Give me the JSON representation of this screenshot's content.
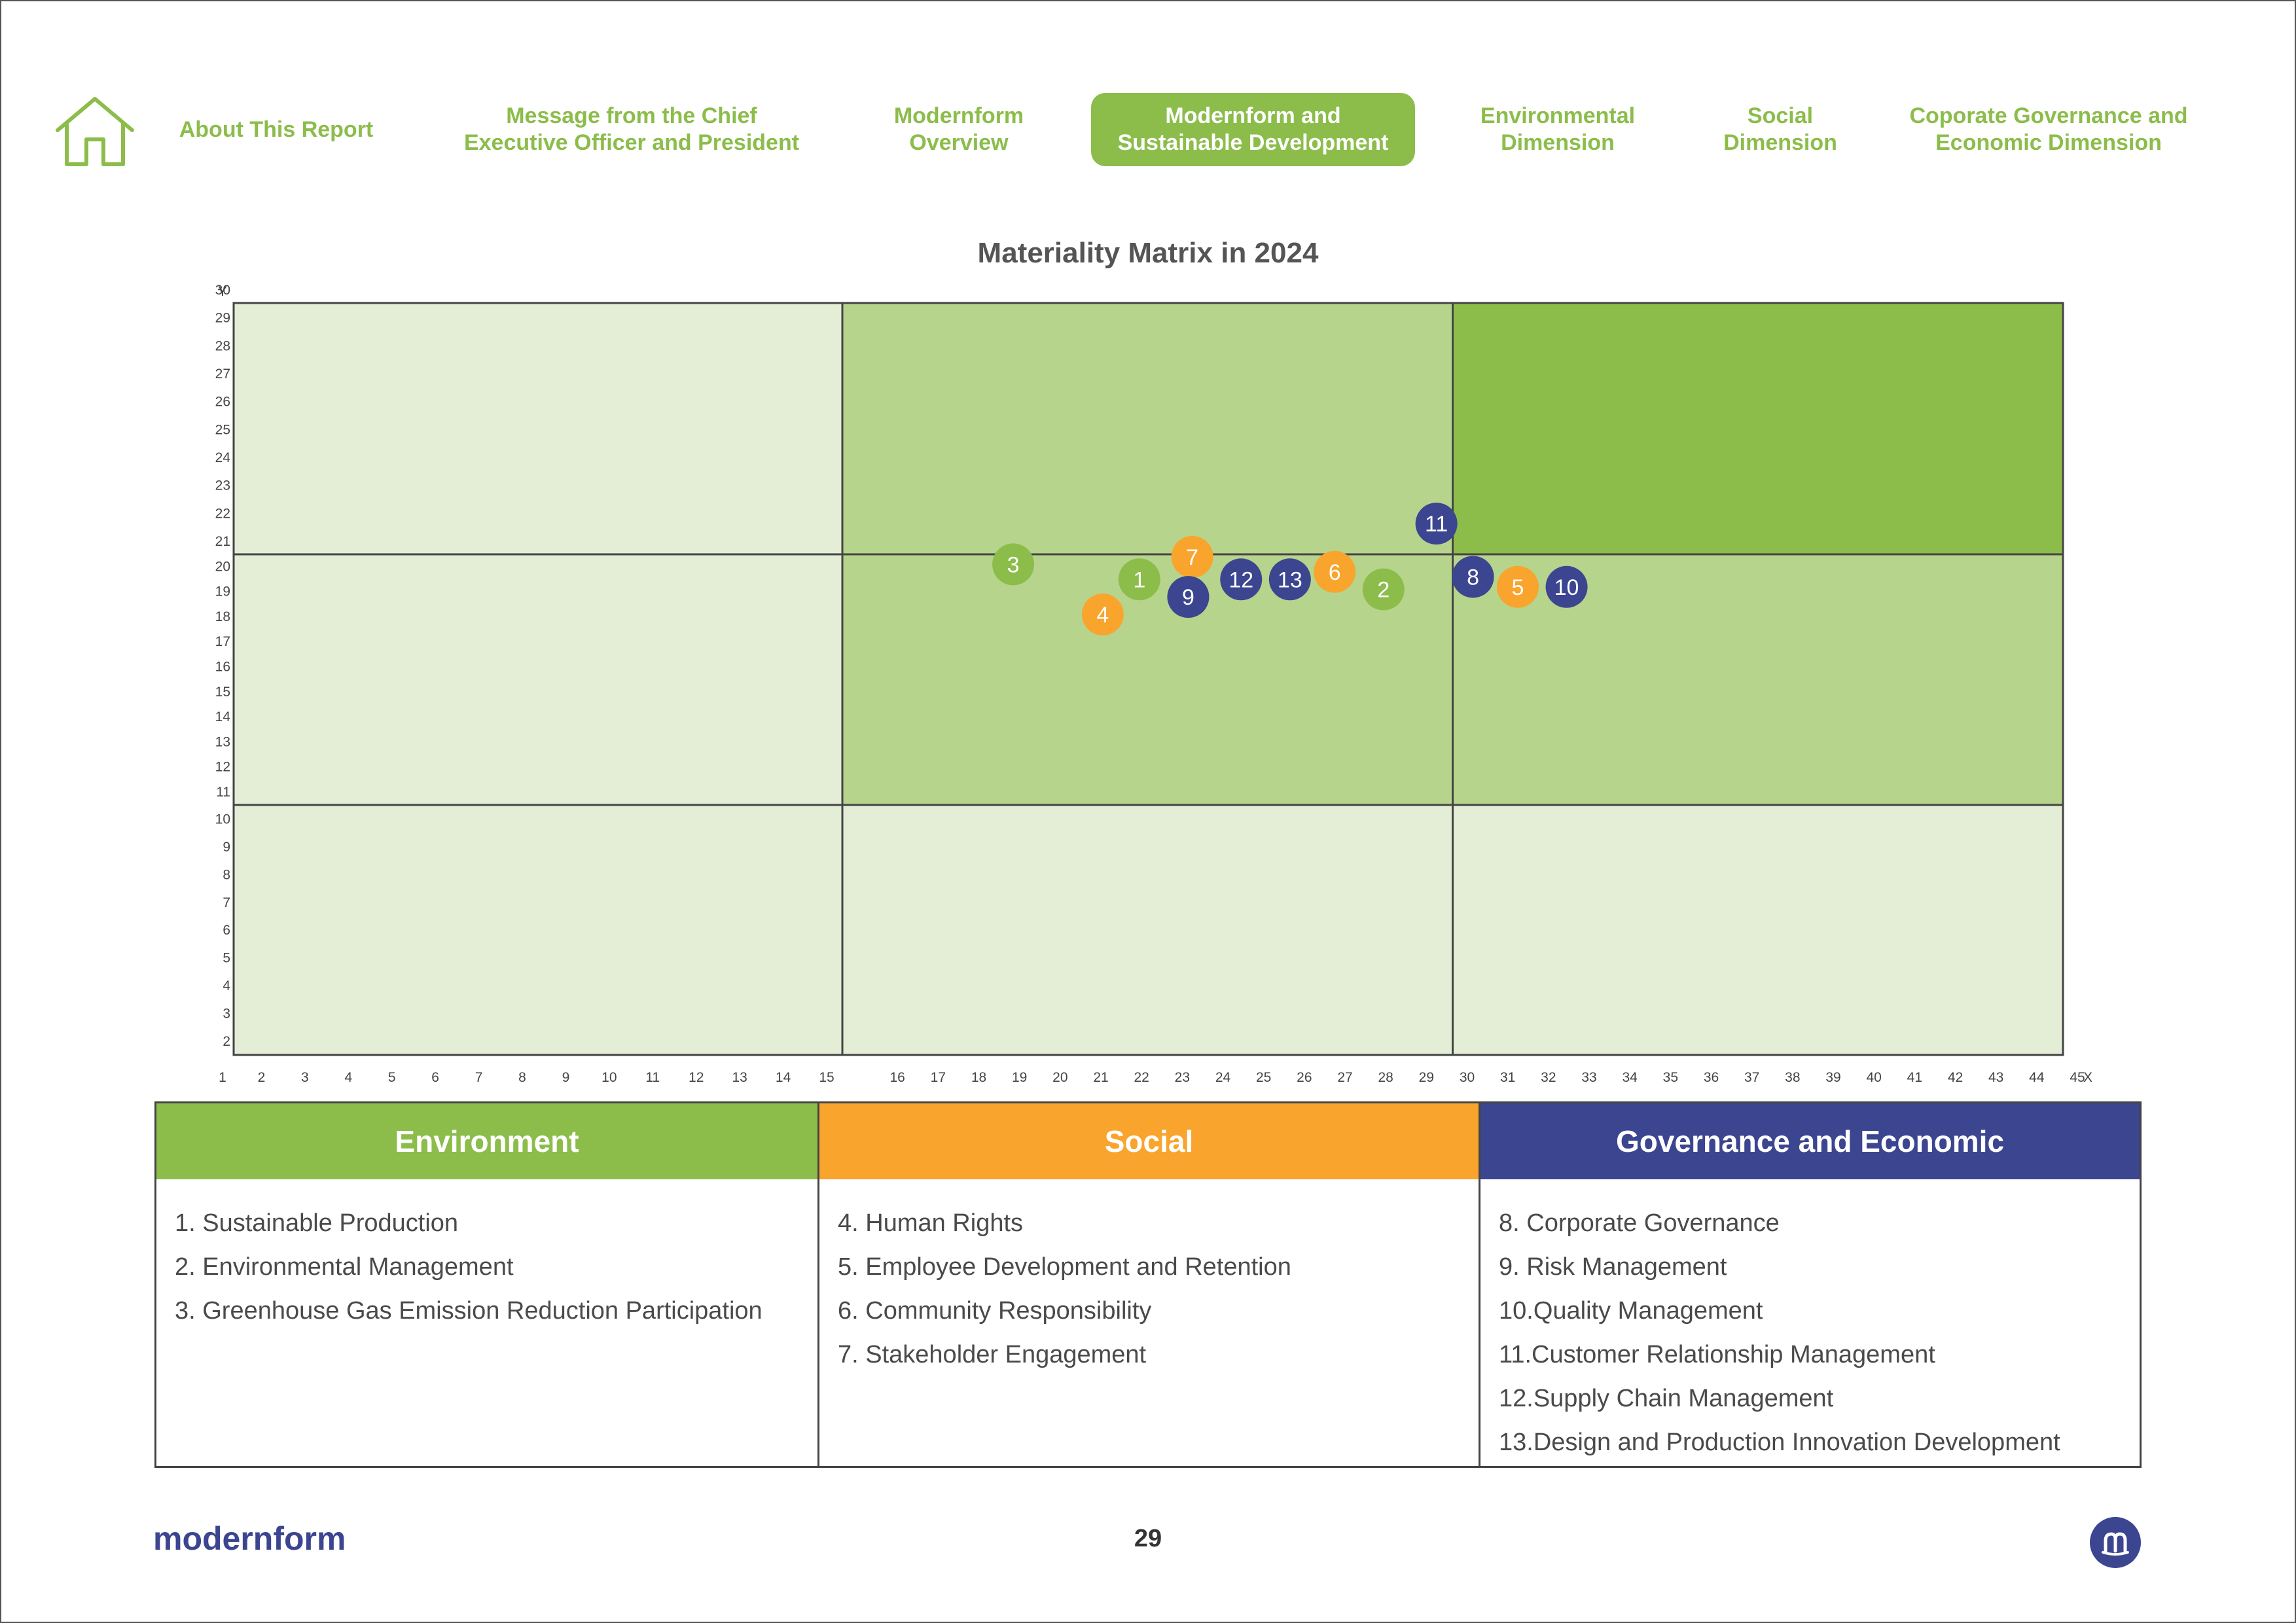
{
  "nav": {
    "items": [
      {
        "label": "About This Report",
        "active": false
      },
      {
        "label": "Message from the Chief\nExecutive Officer and President",
        "active": false
      },
      {
        "label": "Modernform\nOverview",
        "active": false
      },
      {
        "label": "Modernform and\nSustainable Development",
        "active": true
      },
      {
        "label": "Environmental\nDimension",
        "active": false
      },
      {
        "label": "Social\nDimension",
        "active": false
      },
      {
        "label": "Coporate Governance and\nEconomic Dimension",
        "active": false
      }
    ]
  },
  "colors": {
    "accent": "#8cbd4b",
    "environment": "#8cbd4b",
    "social": "#f9a42d",
    "governance": "#3b4590",
    "zone_light": "#e4edd6",
    "zone_mid": "#b7d48d",
    "zone_dark": "#8cbd4b"
  },
  "chart_data": {
    "type": "scatter",
    "title": "Materiality Matrix in 2024",
    "xlabel": "X",
    "ylabel": "Y",
    "xlim": [
      1,
      45
    ],
    "ylim": [
      2,
      30
    ],
    "x_ticks": [
      1,
      2,
      3,
      4,
      5,
      6,
      7,
      8,
      9,
      10,
      11,
      12,
      13,
      14,
      15,
      16,
      17,
      18,
      19,
      20,
      21,
      22,
      23,
      24,
      25,
      26,
      27,
      28,
      29,
      30,
      31,
      32,
      33,
      34,
      35,
      36,
      37,
      38,
      39,
      40,
      41,
      42,
      43,
      44,
      45
    ],
    "y_ticks": [
      2,
      3,
      4,
      5,
      6,
      7,
      8,
      9,
      10,
      11,
      12,
      13,
      14,
      15,
      16,
      17,
      18,
      19,
      20,
      21,
      22,
      23,
      24,
      25,
      26,
      27,
      28,
      29,
      30
    ],
    "grid": {
      "x_dividers": [
        15,
        30
      ],
      "y_dividers": [
        11,
        21
      ]
    },
    "zones": [
      {
        "col": 0,
        "row": 0,
        "shade": "light"
      },
      {
        "col": 1,
        "row": 0,
        "shade": "mid"
      },
      {
        "col": 2,
        "row": 0,
        "shade": "dark"
      },
      {
        "col": 0,
        "row": 1,
        "shade": "light"
      },
      {
        "col": 1,
        "row": 1,
        "shade": "mid"
      },
      {
        "col": 2,
        "row": 1,
        "shade": "mid"
      },
      {
        "col": 0,
        "row": 2,
        "shade": "light"
      },
      {
        "col": 1,
        "row": 2,
        "shade": "light"
      },
      {
        "col": 2,
        "row": 2,
        "shade": "light"
      }
    ],
    "points": [
      {
        "label": "1",
        "x": 22.3,
        "y": 20.0,
        "group": "environment"
      },
      {
        "label": "2",
        "x": 28.3,
        "y": 19.6,
        "group": "environment"
      },
      {
        "label": "3",
        "x": 19.2,
        "y": 20.6,
        "group": "environment"
      },
      {
        "label": "4",
        "x": 21.4,
        "y": 18.6,
        "group": "social"
      },
      {
        "label": "5",
        "x": 31.6,
        "y": 19.7,
        "group": "social"
      },
      {
        "label": "6",
        "x": 27.1,
        "y": 20.3,
        "group": "social"
      },
      {
        "label": "7",
        "x": 23.6,
        "y": 20.9,
        "group": "social"
      },
      {
        "label": "8",
        "x": 30.5,
        "y": 20.1,
        "group": "governance"
      },
      {
        "label": "9",
        "x": 23.5,
        "y": 19.3,
        "group": "governance"
      },
      {
        "label": "10",
        "x": 32.8,
        "y": 19.7,
        "group": "governance"
      },
      {
        "label": "11",
        "x": 29.6,
        "y": 22.1,
        "group": "governance"
      },
      {
        "label": "12",
        "x": 24.8,
        "y": 20.0,
        "group": "governance"
      },
      {
        "label": "13",
        "x": 26.0,
        "y": 20.0,
        "group": "governance"
      }
    ]
  },
  "legend": {
    "environment": {
      "title": "Environment",
      "items": [
        "1. Sustainable Production",
        "2. Environmental Management",
        "3. Greenhouse Gas Emission Reduction Participation"
      ]
    },
    "social": {
      "title": "Social",
      "items": [
        "4. Human Rights",
        "5. Employee Development and Retention",
        "6. Community Responsibility",
        "7. Stakeholder Engagement"
      ]
    },
    "governance": {
      "title": "Governance and Economic",
      "items": [
        "8. Corporate Governance",
        "9. Risk Management",
        "10.Quality Management",
        "11.Customer Relationship Management",
        "12.Supply Chain Management",
        "13.Design and Production Innovation Development"
      ]
    }
  },
  "footer": {
    "logo": "modernform",
    "page_number": "29",
    "badge_icon": "modernform-m-logo-icon"
  }
}
